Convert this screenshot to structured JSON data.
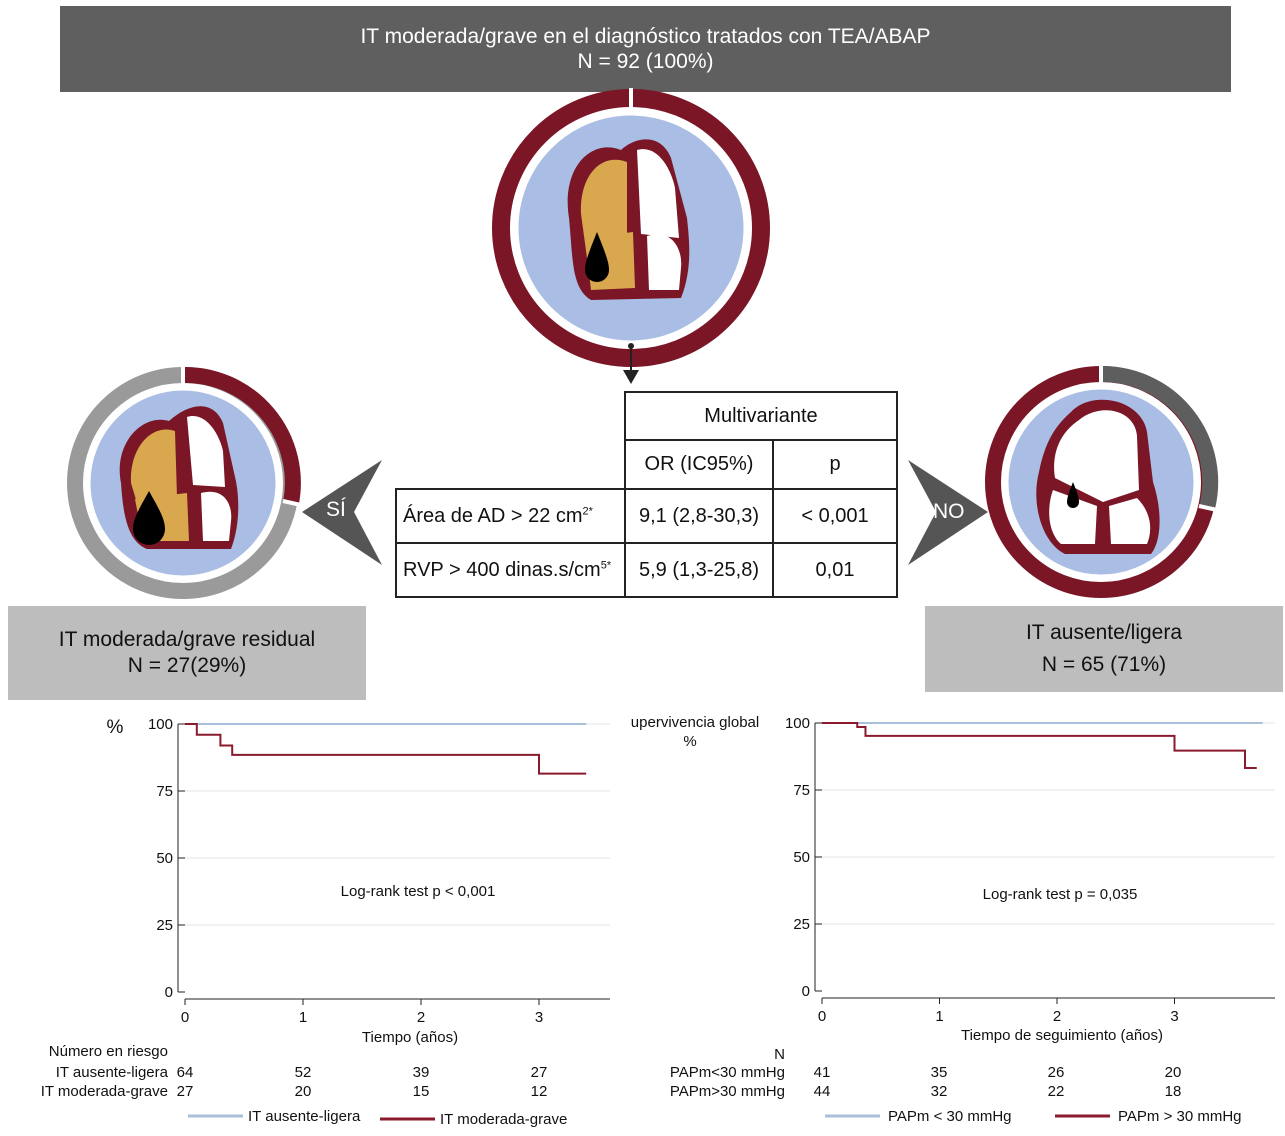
{
  "header": {
    "line1": "IT moderada/grave en el diagnóstico tratados con TEA/ABAP",
    "line2": "N = 92 (100%)"
  },
  "left_group": {
    "line1": "IT moderada/grave residual",
    "line2": "N = 27(29%)",
    "arrow_label": "SÍ"
  },
  "right_group": {
    "line1": "IT ausente/ligera",
    "line2": "N = 65 (71%)",
    "arrow_label": "NO"
  },
  "table": {
    "title": "Multivariante",
    "col_or": "OR (IC95%)",
    "col_p": "p",
    "rows": [
      {
        "label": "Área de AD > 22 cm",
        "sup": "2*",
        "or": "9,1 (2,8-30,3)",
        "p": "< 0,001"
      },
      {
        "label": "RVP > 400 dinas.s/cm",
        "sup": "5*",
        "or": "5,9 (1,3-25,8)",
        "p": "0,01"
      }
    ]
  },
  "colors": {
    "ring_red": "#7a1626",
    "ring_gray": "#9a9a9a",
    "ring_dark_gray": "#5e5e5e",
    "disc_blue": "#aabde4",
    "atrium_gold": "#d8a74e",
    "line_blue": "#a9bfdc",
    "line_red": "#8b1a2e"
  },
  "chart_data": [
    {
      "type": "line",
      "ylabel": "%",
      "xlabel": "Tiempo (años)",
      "xlim": [
        0,
        3.5
      ],
      "ylim": [
        0,
        100
      ],
      "yticks": [
        0,
        25,
        50,
        75,
        100
      ],
      "xticks": [
        0,
        1,
        2,
        3
      ],
      "annotation": "Log-rank test  p < 0,001",
      "series": [
        {
          "name": "IT ausente-ligera",
          "color": "#a9bfdc",
          "step": [
            [
              0,
              100
            ],
            [
              3.4,
              100
            ]
          ]
        },
        {
          "name": "IT moderada-grave",
          "color": "#8b1a2e",
          "step": [
            [
              0,
              100
            ],
            [
              0.1,
              100
            ],
            [
              0.1,
              96
            ],
            [
              0.3,
              96
            ],
            [
              0.3,
              92
            ],
            [
              0.4,
              92
            ],
            [
              0.4,
              88.5
            ],
            [
              3.0,
              88.5
            ],
            [
              3.0,
              81.5
            ],
            [
              3.4,
              81.5
            ]
          ]
        }
      ],
      "risk_table": {
        "title": "Número en riesgo",
        "rows": [
          {
            "label": "IT ausente-ligera",
            "values": [
              "64",
              "52",
              "39",
              "27"
            ]
          },
          {
            "label": "IT moderada-grave",
            "values": [
              "27",
              "20",
              "15",
              "12"
            ]
          }
        ]
      },
      "legend": [
        "IT ausente-ligera",
        "IT moderada-grave"
      ]
    },
    {
      "type": "line",
      "title": "Supervivencia global",
      "ylabel": "%",
      "xlabel": "Tiempo de seguimiento (años)",
      "xlim": [
        0,
        3.8
      ],
      "ylim": [
        0,
        100
      ],
      "yticks": [
        0,
        25,
        50,
        75,
        100
      ],
      "xticks": [
        0,
        1,
        2,
        3
      ],
      "annotation": "Log-rank test  p = 0,035",
      "series": [
        {
          "name": "PAPm < 30 mmHg",
          "color": "#a9bfdc",
          "step": [
            [
              0,
              100
            ],
            [
              3.75,
              100
            ]
          ]
        },
        {
          "name": "PAPm > 30 mmHg",
          "color": "#8b1a2e",
          "step": [
            [
              0,
              100
            ],
            [
              0.3,
              100
            ],
            [
              0.3,
              98.5
            ],
            [
              0.37,
              98.5
            ],
            [
              0.37,
              95.2
            ],
            [
              3.0,
              95.2
            ],
            [
              3.0,
              89.7
            ],
            [
              3.6,
              89.7
            ],
            [
              3.6,
              83.2
            ],
            [
              3.7,
              83.2
            ]
          ]
        }
      ],
      "risk_table": {
        "title": "N",
        "rows": [
          {
            "label": "PAPm<30 mmHg",
            "values": [
              "41",
              "35",
              "26",
              "20"
            ]
          },
          {
            "label": "PAPm>30 mmHg",
            "values": [
              "44",
              "32",
              "22",
              "18"
            ]
          }
        ]
      },
      "legend": [
        "PAPm < 30 mmHg",
        "PAPm > 30 mmHg"
      ]
    }
  ]
}
